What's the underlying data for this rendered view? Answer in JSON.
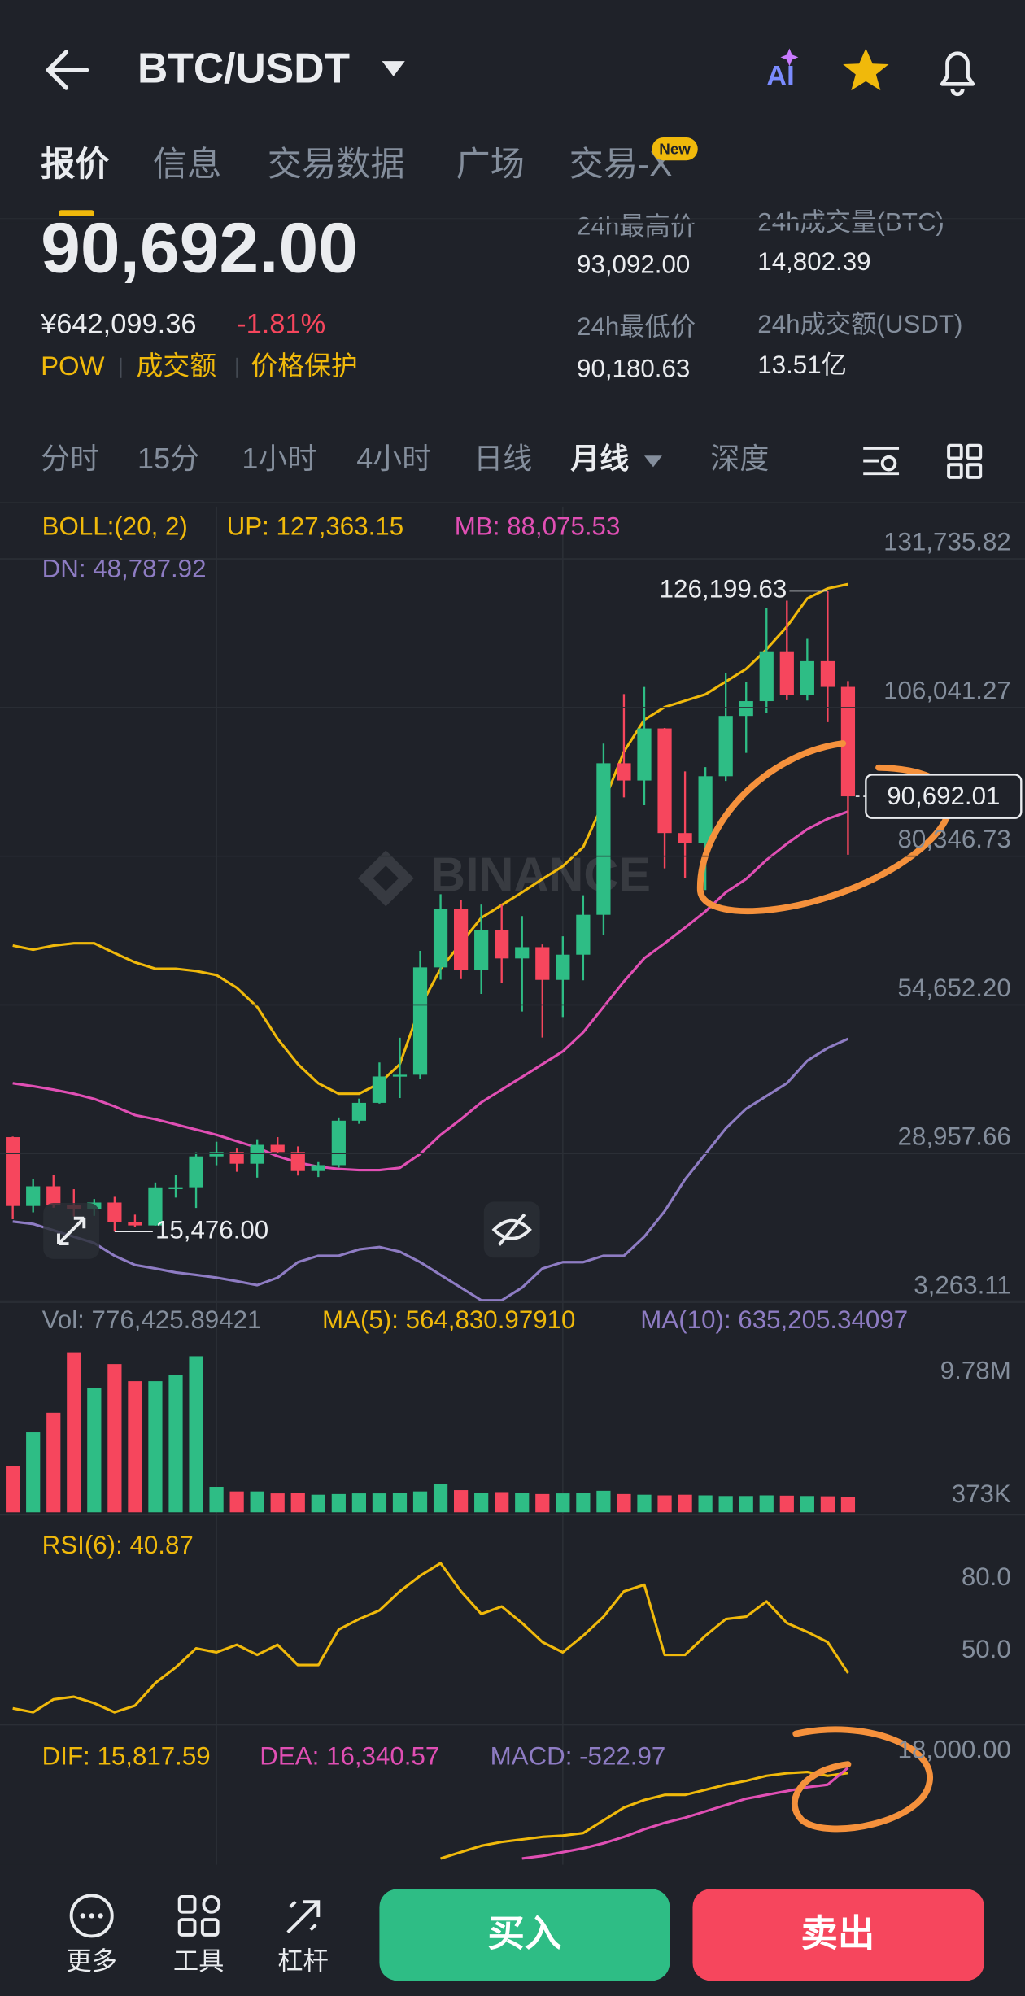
{
  "header": {
    "title": "BTC/USDT",
    "ai": "AI",
    "tabs": [
      "报价",
      "信息",
      "交易数据",
      "广场",
      "交易-X"
    ],
    "badge": "New"
  },
  "ticker": {
    "price": "90,692.00",
    "cny": "¥642,099.36",
    "change": "-1.81%",
    "tags": [
      "POW",
      "成交额",
      "价格保护"
    ],
    "stats": [
      {
        "label": "24h最高价",
        "value": "93,092.00"
      },
      {
        "label": "24h成交量(BTC)",
        "value": "14,802.39"
      },
      {
        "label": "24h最低价",
        "value": "90,180.63"
      },
      {
        "label": "24h成交额(USDT)",
        "value": "13.51亿"
      }
    ]
  },
  "intervals": [
    "分时",
    "15分",
    "1小时",
    "4小时",
    "日线",
    "月线",
    "深度"
  ],
  "kline": {
    "boll": "BOLL:(20, 2)",
    "up_label": "UP: 127,363.15",
    "mb_label": "MB: 88,075.53",
    "dn_label": "DN: 48,787.92",
    "watermark": "BINANCE",
    "yticks": [
      {
        "value": 131735.82,
        "label": "131,735.82"
      },
      {
        "value": 106041.27,
        "label": "106,041.27"
      },
      {
        "value": 80346.73,
        "label": "80,346.73"
      },
      {
        "value": 54652.2,
        "label": "54,652.20"
      },
      {
        "value": 28957.66,
        "label": "28,957.66"
      },
      {
        "value": 3263.11,
        "label": "3,263.11"
      }
    ],
    "high_label": "126,199.63",
    "low_label": "15,476.00",
    "last_label": "90,692.01",
    "open": [
      31800,
      19900,
      23300,
      20050,
      19420,
      20490,
      17160,
      16540,
      23120,
      23140,
      28470,
      29230,
      27210,
      30470,
      29230,
      25940,
      26960,
      34640,
      37720,
      42280,
      42580,
      61130,
      71280,
      60670,
      67540,
      62680,
      64630,
      58970,
      63330,
      70220,
      96410,
      93430,
      102430,
      84350,
      82550,
      94170,
      104590,
      107140,
      115760,
      108240,
      114050,
      109600
    ],
    "high": [
      31900,
      24600,
      25200,
      22800,
      21100,
      21480,
      18400,
      23960,
      25250,
      29180,
      31000,
      29820,
      31430,
      31800,
      30200,
      27480,
      35200,
      38450,
      44700,
      48970,
      64000,
      73780,
      72800,
      71980,
      71950,
      70000,
      65100,
      66500,
      73600,
      99800,
      108350,
      109590,
      102500,
      95000,
      95750,
      111980,
      110500,
      123200,
      124500,
      117900,
      126199.63,
      110600
    ],
    "low": [
      17600,
      18800,
      19600,
      18100,
      18200,
      15476,
      16250,
      16500,
      21350,
      19550,
      26940,
      25810,
      24800,
      28860,
      25160,
      24900,
      26540,
      34100,
      37600,
      38550,
      41880,
      59000,
      59100,
      56550,
      58400,
      53500,
      49000,
      52550,
      58900,
      66800,
      90500,
      89160,
      78250,
      76600,
      74500,
      93350,
      98200,
      105100,
      107300,
      107250,
      103500,
      80600
    ],
    "close": [
      19900,
      23300,
      20050,
      19420,
      20490,
      17160,
      16540,
      23120,
      23140,
      28470,
      29230,
      27210,
      30470,
      29230,
      25940,
      26960,
      34640,
      37720,
      42280,
      42580,
      61130,
      71280,
      60670,
      67540,
      62680,
      64630,
      58970,
      63330,
      70220,
      96410,
      93430,
      102430,
      84350,
      82550,
      94170,
      104590,
      107140,
      115760,
      108240,
      114050,
      109600,
      90692.01
    ],
    "up": [
      64900,
      64200,
      64900,
      65300,
      65300,
      63600,
      62000,
      60900,
      60900,
      60500,
      59800,
      57600,
      54300,
      48800,
      44400,
      41100,
      39300,
      39300,
      41100,
      44400,
      54300,
      60900,
      65300,
      69700,
      71900,
      74100,
      76400,
      78600,
      81900,
      89600,
      98400,
      103900,
      106100,
      107200,
      108300,
      110500,
      112700,
      116100,
      120000,
      124900,
      126600,
      127363.15
    ],
    "mb": [
      41100,
      40600,
      40000,
      39300,
      38400,
      37100,
      35600,
      34900,
      34000,
      33100,
      32200,
      31100,
      30000,
      28500,
      27400,
      26700,
      26300,
      26100,
      26100,
      26500,
      28900,
      32200,
      34900,
      37800,
      40000,
      42200,
      44400,
      46600,
      49900,
      54300,
      58700,
      62700,
      65300,
      68000,
      70800,
      74100,
      76400,
      79700,
      82500,
      85000,
      86800,
      88075.53
    ],
    "dn": [
      17200,
      16800,
      15700,
      14600,
      13500,
      11300,
      9700,
      9100,
      8400,
      8000,
      7500,
      6900,
      6200,
      7500,
      10200,
      11300,
      11300,
      12400,
      12800,
      12000,
      10200,
      8000,
      5800,
      3600,
      3600,
      5800,
      9100,
      10200,
      10200,
      11300,
      11300,
      14600,
      19000,
      24500,
      28900,
      33300,
      36700,
      38900,
      41100,
      45000,
      47200,
      48787.92
    ]
  },
  "volume": {
    "label": "Vol: 776,425.89421",
    "ma5_label": "MA(5): 564,830.97910",
    "ma10_label": "MA(10): 635,205.34097",
    "yticks": [
      {
        "value": 9780000,
        "label": "9.78M"
      },
      {
        "value": 373000,
        "label": "373K"
      }
    ],
    "values": [
      2600000,
      5200000,
      6700000,
      11300000,
      8600000,
      10400000,
      9100000,
      9100000,
      9600000,
      11000000,
      1050000,
      700000,
      700000,
      550000,
      600000,
      450000,
      500000,
      550000,
      550000,
      600000,
      700000,
      1250000,
      800000,
      600000,
      650000,
      600000,
      500000,
      550000,
      600000,
      750000,
      500000,
      450000,
      400000,
      450000,
      400000,
      350000,
      350000,
      400000,
      380000,
      350000,
      330000,
      300000
    ]
  },
  "rsi": {
    "label": "RSI(6): 40.87",
    "yticks": [
      {
        "value": 80,
        "label": "80.0"
      },
      {
        "value": 50,
        "label": "50.0"
      }
    ],
    "values": [
      26.3,
      24.7,
      30.0,
      31.1,
      28.4,
      24.7,
      27.4,
      36.8,
      43.2,
      51.1,
      49.5,
      52.6,
      48.4,
      52.6,
      44.2,
      44.2,
      58.9,
      63.2,
      66.8,
      74.7,
      81.1,
      86.3,
      74.7,
      65.3,
      68.4,
      61.6,
      53.7,
      49.5,
      56.3,
      64.2,
      74.7,
      77.4,
      48.4,
      48.4,
      56.3,
      63.2,
      64.2,
      70.5,
      61.6,
      57.9,
      53.7,
      40.87
    ]
  },
  "macd": {
    "dif_label": "DIF: 15,817.59",
    "dea_label": "DEA: 16,340.57",
    "macd_label": "MACD: -522.97",
    "ylim": [
      7000,
      20000
    ],
    "yticks": [
      {
        "value": 18000,
        "label": "18,000.00"
      }
    ],
    "dif": [
      null,
      null,
      null,
      null,
      null,
      null,
      null,
      null,
      null,
      null,
      null,
      null,
      null,
      null,
      null,
      null,
      null,
      null,
      null,
      null,
      null,
      7255,
      7893,
      8530,
      8913,
      9168,
      9423,
      9550,
      9805,
      11080,
      12355,
      13120,
      13630,
      13630,
      14140,
      14650,
      15033,
      15543,
      15798,
      15925,
      15543,
      15817.59
    ],
    "dea": [
      null,
      null,
      null,
      null,
      null,
      null,
      null,
      null,
      null,
      null,
      null,
      null,
      null,
      null,
      null,
      null,
      null,
      null,
      null,
      null,
      null,
      null,
      null,
      null,
      null,
      7255,
      7510,
      7893,
      8275,
      8785,
      9423,
      10188,
      10825,
      11335,
      11973,
      12610,
      13248,
      13630,
      14013,
      14395,
      14650,
      16340.57
    ]
  },
  "footer": {
    "tools": [
      "更多",
      "工具",
      "杠杆"
    ],
    "buy": "买入",
    "sell": "卖出"
  }
}
